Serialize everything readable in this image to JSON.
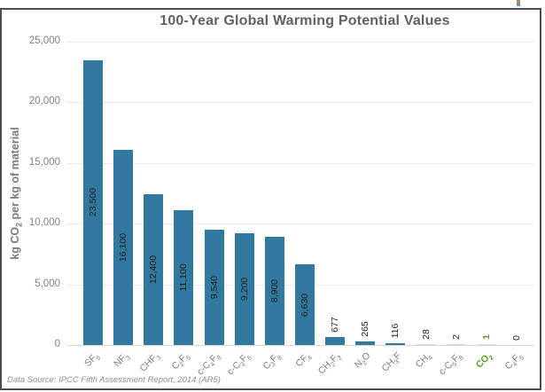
{
  "title": "100-Year Global Warming Potential Values",
  "y_axis_label": "kg CO2 per kg of material",
  "footer": "Data Source: IPCC Fifth Assessment Report, 2014 (AR5)",
  "colors": {
    "bar_teal": "#3279A0",
    "bar_light_blue": "#C7DAE8",
    "bar_light_green": "#D9E6C6",
    "co2_green": "#579B20",
    "title_gray": "#616161",
    "axis_gray": "#808080",
    "gridline": "#EAEAEA",
    "frame_border": "#4D4D4F"
  },
  "chart_data": {
    "type": "bar",
    "title": "100-Year Global Warming Potential Values",
    "xlabel": "",
    "ylabel": "kg CO2 per kg of material",
    "ylim": [
      0,
      25000
    ],
    "yticks": [
      0,
      5000,
      10000,
      15000,
      20000,
      25000
    ],
    "ytick_labels": [
      "0",
      "5,000",
      "10,000",
      "15,000",
      "20,000",
      "25,000"
    ],
    "grid": true,
    "legend": false,
    "xtick_rotation": 45,
    "value_label_rotation": 90,
    "categories": [
      "SF6",
      "NF3",
      "CHF3",
      "C2F6",
      "c-C4F8",
      "c-C3F6",
      "C3F8",
      "CF4",
      "CH2F2",
      "N2O",
      "CH3F",
      "CH4",
      "c-C5F8",
      "CO2",
      "C4F6"
    ],
    "values": [
      23500,
      16100,
      12400,
      11100,
      9540,
      9200,
      8900,
      6630,
      677,
      265,
      116,
      28,
      2,
      1,
      0
    ],
    "value_labels": [
      "23,500",
      "16,100",
      "12,400",
      "11,100",
      "9,540",
      "9,200",
      "8,900",
      "6,630",
      "677",
      "265",
      "116",
      "28",
      "2",
      "1",
      "0"
    ],
    "bar_colors": [
      "#3279A0",
      "#3279A0",
      "#3279A0",
      "#3279A0",
      "#3279A0",
      "#3279A0",
      "#3279A0",
      "#3279A0",
      "#3279A0",
      "#3279A0",
      "#3279A0",
      "#C7DAE8",
      "#C7DAE8",
      "#D9E6C6",
      "#3279A0"
    ],
    "value_label_colors": [
      null,
      null,
      null,
      null,
      null,
      null,
      null,
      null,
      null,
      null,
      null,
      null,
      null,
      "#579B20",
      null
    ],
    "tick_colors": [
      null,
      null,
      null,
      null,
      null,
      null,
      null,
      null,
      null,
      null,
      null,
      null,
      null,
      "#579B20",
      null
    ],
    "source_note": "Data Source: IPCC Fifth Assessment Report, 2014 (AR5)"
  }
}
